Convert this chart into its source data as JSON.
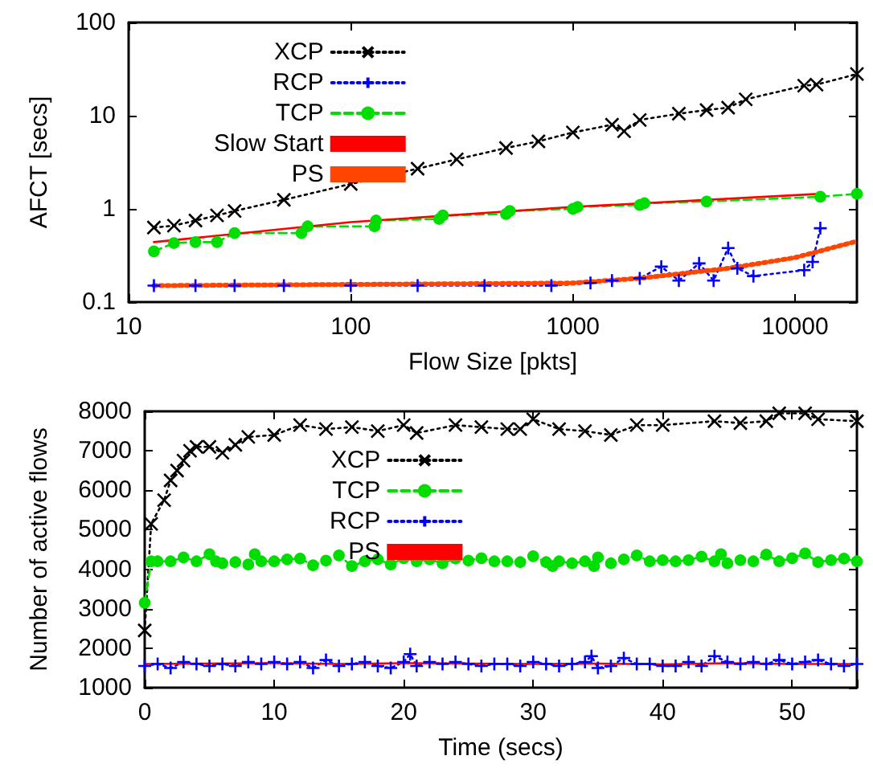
{
  "chart_data": [
    {
      "type": "line",
      "xlabel": "Flow Size [pkts]",
      "ylabel": "AFCT [secs]",
      "log": "xy",
      "xlim": [
        10,
        19000
      ],
      "ylim": [
        0.1,
        100
      ],
      "xticks": [
        10,
        100,
        1000,
        10000
      ],
      "yticks": [
        0.1,
        1,
        10,
        100
      ],
      "legend": "top left",
      "grid": false,
      "series": [
        {
          "name": "XCP",
          "color": "#000000",
          "marker": "x",
          "line_style": "dotted",
          "x": [
            13,
            16,
            20,
            25,
            30,
            50,
            100,
            200,
            300,
            500,
            700,
            1000,
            1500,
            1700,
            2000,
            3000,
            4000,
            5000,
            6000,
            11000,
            12500,
            19000
          ],
          "values": [
            0.63,
            0.66,
            0.75,
            0.85,
            0.95,
            1.25,
            1.85,
            2.7,
            3.4,
            4.5,
            5.3,
            6.6,
            8,
            6.8,
            9,
            10.5,
            11.5,
            12.2,
            15,
            21,
            21.5,
            28
          ]
        },
        {
          "name": "RCP",
          "color": "#0000ff",
          "marker": "cross",
          "line_style": "dotted",
          "x": [
            13,
            20,
            30,
            50,
            100,
            200,
            400,
            800,
            1200,
            1500,
            2000,
            2500,
            3000,
            3700,
            4300,
            5000,
            5500,
            6500,
            11000,
            12000,
            13000
          ],
          "values": [
            0.15,
            0.15,
            0.15,
            0.15,
            0.15,
            0.15,
            0.15,
            0.15,
            0.16,
            0.17,
            0.18,
            0.24,
            0.17,
            0.26,
            0.17,
            0.38,
            0.23,
            0.19,
            0.22,
            0.27,
            0.62
          ]
        },
        {
          "name": "TCP",
          "color": "#00dd00",
          "marker": "circle",
          "line_style": "dashed",
          "x": [
            13,
            16,
            20,
            25,
            30,
            60,
            64,
            128,
            130,
            250,
            260,
            500,
            520,
            1000,
            1050,
            2000,
            2100,
            4000,
            13000,
            19000
          ],
          "values": [
            0.35,
            0.43,
            0.44,
            0.44,
            0.55,
            0.55,
            0.65,
            0.65,
            0.75,
            0.78,
            0.85,
            0.88,
            0.95,
            1.0,
            1.05,
            1.1,
            1.15,
            1.2,
            1.35,
            1.45
          ]
        },
        {
          "name": "Slow Start",
          "color": "#ff0000",
          "marker": "none",
          "line_style": "solid",
          "x": [
            13,
            100,
            1000,
            13000
          ],
          "values": [
            0.44,
            0.72,
            1.05,
            1.45
          ]
        },
        {
          "name": "PS",
          "color": "#ff4500",
          "marker": "none",
          "line_style": "dotted",
          "x": [
            13,
            1000,
            2000,
            5000,
            10000,
            19000
          ],
          "values": [
            0.15,
            0.16,
            0.18,
            0.23,
            0.3,
            0.45
          ]
        }
      ]
    },
    {
      "type": "line",
      "xlabel": "Time (secs)",
      "ylabel": "Number of active flows",
      "xlim": [
        0,
        55
      ],
      "ylim": [
        1000,
        8000
      ],
      "xticks": [
        0,
        10,
        20,
        30,
        40,
        50
      ],
      "yticks": [
        1000,
        2000,
        3000,
        4000,
        5000,
        6000,
        7000,
        8000
      ],
      "legend": "top",
      "grid": false,
      "series": [
        {
          "name": "XCP",
          "color": "#000000",
          "marker": "x",
          "line_style": "dotted",
          "x": [
            0,
            0.5,
            1.5,
            2,
            2.5,
            3,
            3.5,
            4,
            5,
            6,
            7,
            8,
            10,
            12,
            14,
            16,
            18,
            20,
            21,
            24,
            26,
            28,
            29,
            30,
            32,
            34,
            36,
            38,
            40,
            44,
            46,
            48,
            49,
            51,
            52,
            55
          ],
          "values": [
            2450,
            5150,
            5750,
            6250,
            6500,
            6750,
            7000,
            7100,
            7100,
            6950,
            7150,
            7350,
            7400,
            7650,
            7550,
            7600,
            7500,
            7650,
            7450,
            7650,
            7600,
            7550,
            7550,
            7800,
            7550,
            7500,
            7400,
            7650,
            7650,
            7750,
            7700,
            7750,
            7950,
            7950,
            7800,
            7750
          ]
        },
        {
          "name": "TCP",
          "color": "#00dd00",
          "marker": "circle",
          "line_style": "dashed",
          "x": [
            0,
            0.5,
            1,
            2,
            3,
            4,
            5,
            5.5,
            6,
            7,
            8,
            8.5,
            9,
            10,
            11,
            12,
            13,
            14,
            15,
            16,
            17,
            18,
            19,
            20,
            21,
            22,
            23,
            24,
            25,
            26,
            27,
            28,
            29,
            30,
            31,
            31.5,
            32,
            33,
            34,
            34.7,
            35,
            36,
            37,
            38,
            39,
            40,
            41,
            42,
            43,
            44,
            44.5,
            45,
            46,
            47,
            48,
            49,
            50,
            51,
            52,
            53,
            54,
            55
          ],
          "values": [
            3150,
            4200,
            4200,
            4200,
            4300,
            4200,
            4380,
            4200,
            4150,
            4180,
            4120,
            4380,
            4200,
            4200,
            4250,
            4270,
            4100,
            4220,
            4350,
            4080,
            4200,
            4250,
            4120,
            4280,
            4200,
            4250,
            4150,
            4270,
            4220,
            4280,
            4200,
            4200,
            4180,
            4330,
            4180,
            4080,
            4200,
            4150,
            4200,
            4080,
            4300,
            4150,
            4250,
            4350,
            4200,
            4230,
            4200,
            4230,
            4320,
            4200,
            4380,
            4150,
            4230,
            4200,
            4370,
            4200,
            4280,
            4400,
            4180,
            4230,
            4270,
            4200
          ]
        },
        {
          "name": "RCP",
          "color": "#0000ff",
          "marker": "cross",
          "line_style": "dotted",
          "x": [
            0,
            1,
            2,
            3,
            4,
            5,
            6,
            7,
            8,
            9,
            10,
            11,
            12,
            13,
            14,
            15,
            16,
            17,
            18,
            19,
            20,
            20.5,
            21,
            22,
            23,
            24,
            25,
            26,
            27,
            28,
            29,
            30,
            31,
            32,
            33,
            34,
            34.5,
            35,
            36,
            37,
            38,
            39,
            40,
            41,
            42,
            43,
            44,
            45,
            46,
            47,
            48,
            49,
            50,
            51,
            52,
            53,
            54,
            55
          ],
          "values": [
            1550,
            1600,
            1500,
            1650,
            1600,
            1550,
            1600,
            1550,
            1650,
            1600,
            1650,
            1600,
            1650,
            1500,
            1700,
            1550,
            1600,
            1650,
            1550,
            1500,
            1650,
            1850,
            1550,
            1650,
            1600,
            1650,
            1600,
            1550,
            1600,
            1600,
            1550,
            1650,
            1600,
            1550,
            1600,
            1650,
            1800,
            1500,
            1550,
            1750,
            1600,
            1600,
            1550,
            1550,
            1650,
            1550,
            1800,
            1650,
            1600,
            1650,
            1600,
            1700,
            1600,
            1650,
            1700,
            1600,
            1550,
            1600
          ]
        },
        {
          "name": "PS",
          "color": "#ff0000",
          "marker": "none",
          "line_style": "solid",
          "x": [
            0,
            10,
            15,
            20,
            30,
            35,
            40,
            45,
            50,
            55
          ],
          "values": [
            1600,
            1620,
            1600,
            1620,
            1600,
            1610,
            1590,
            1620,
            1600,
            1600
          ]
        }
      ]
    }
  ]
}
